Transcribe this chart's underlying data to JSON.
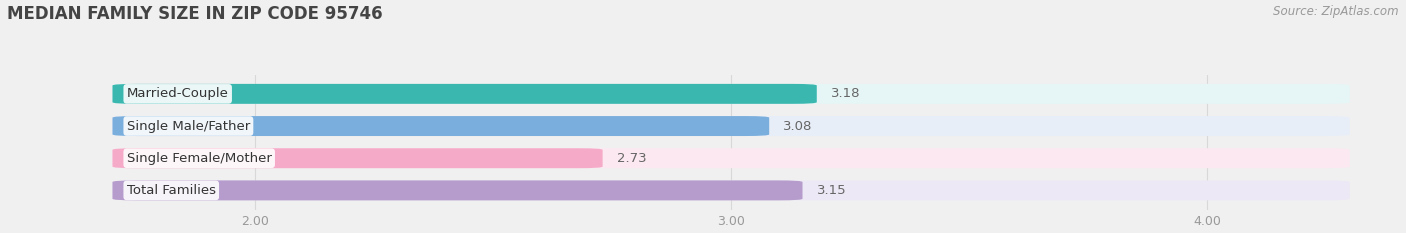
{
  "title": "MEDIAN FAMILY SIZE IN ZIP CODE 95746",
  "source": "Source: ZipAtlas.com",
  "categories": [
    "Married-Couple",
    "Single Male/Father",
    "Single Female/Mother",
    "Total Families"
  ],
  "values": [
    3.18,
    3.08,
    2.73,
    3.15
  ],
  "bar_colors": [
    "#3ab8b0",
    "#7aaedd",
    "#f5abc8",
    "#b59ccc"
  ],
  "bar_bg_colors": [
    "#e6f5f5",
    "#e8eef8",
    "#fce8f0",
    "#ede8f5"
  ],
  "xlim": [
    1.7,
    4.3
  ],
  "xticks": [
    2.0,
    3.0,
    4.0
  ],
  "xtick_labels": [
    "2.00",
    "3.00",
    "4.00"
  ],
  "bar_height": 0.62,
  "label_fontsize": 9.5,
  "value_fontsize": 9.5,
  "title_fontsize": 12,
  "source_fontsize": 8.5,
  "bg_color": "#f0f0f0",
  "text_color": "#555555",
  "grid_color": "#d8d8d8",
  "value_color": "#666666"
}
